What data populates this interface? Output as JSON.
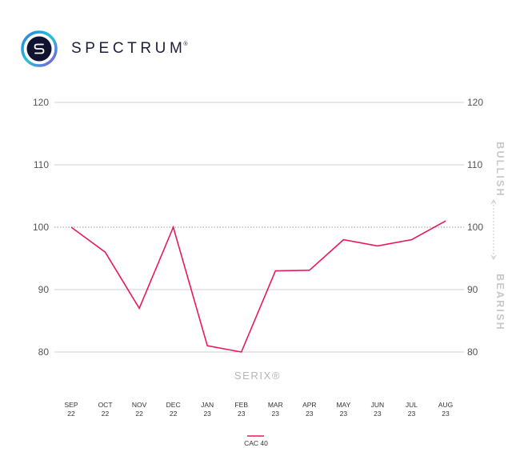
{
  "brand": {
    "name": "SPECTRUM",
    "mark": "®",
    "logo_icon": "spectrum-s-icon",
    "logo_colors": [
      "#2a7de1",
      "#22c4d8",
      "#8a4fd8"
    ]
  },
  "chart_data": {
    "type": "line",
    "categories": [
      [
        "SEP",
        "22"
      ],
      [
        "OCT",
        "22"
      ],
      [
        "NOV",
        "22"
      ],
      [
        "DEC",
        "22"
      ],
      [
        "JAN",
        "23"
      ],
      [
        "FEB",
        "23"
      ],
      [
        "MAR",
        "23"
      ],
      [
        "APR",
        "23"
      ],
      [
        "MAY",
        "23"
      ],
      [
        "JUN",
        "23"
      ],
      [
        "JUL",
        "23"
      ],
      [
        "AUG",
        "23"
      ]
    ],
    "series": [
      {
        "name": "CAC 40",
        "values": [
          100,
          96,
          87,
          100,
          81,
          80,
          93,
          93.1,
          98,
          97,
          98,
          101
        ],
        "color": "#e6195f"
      }
    ],
    "yticks": [
      "120",
      "110",
      "100",
      "90",
      "80"
    ],
    "ylim": [
      80,
      120
    ],
    "reference_line": 100,
    "watermark": "SERIX®",
    "right_labels": {
      "top": "BULLISH",
      "bottom": "BEARISH"
    },
    "grid": "horizontal",
    "legend_position": "bottom-center"
  }
}
